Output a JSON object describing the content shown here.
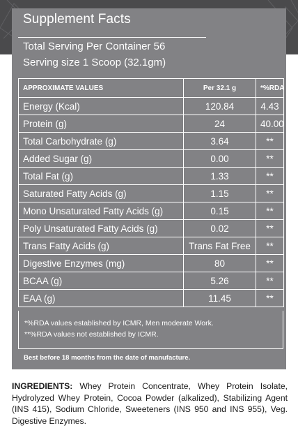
{
  "panel": {
    "title": "Supplement Facts",
    "serving_per_container": "Total Serving Per Container 56",
    "serving_size": "Serving size 1 Scoop (32.1gm)"
  },
  "table": {
    "headers": {
      "nutrient": "APPROXIMATE VALUES",
      "amount": "Per 32.1 g",
      "rda": "*%RDA"
    },
    "rows": [
      {
        "nutrient": "Energy (Kcal)",
        "amount": "120.84",
        "rda": "4.43"
      },
      {
        "nutrient": "Protein (g)",
        "amount": "24",
        "rda": "40.00"
      },
      {
        "nutrient": "Total Carbohydrate (g)",
        "amount": "3.64",
        "rda": "**"
      },
      {
        "nutrient": "Added Sugar (g)",
        "amount": "0.00",
        "rda": "**"
      },
      {
        "nutrient": "Total Fat (g)",
        "amount": "1.33",
        "rda": "**"
      },
      {
        "nutrient": "Saturated Fatty Acids (g)",
        "amount": "1.15",
        "rda": "**"
      },
      {
        "nutrient": "Mono Unsaturated Fatty Acids (g)",
        "amount": "0.15",
        "rda": "**"
      },
      {
        "nutrient": "Poly Unsaturated Fatty Acids (g)",
        "amount": "0.02",
        "rda": "**"
      },
      {
        "nutrient": "Trans Fatty Acids (g)",
        "amount": "Trans Fat Free",
        "rda": "**"
      },
      {
        "nutrient": "Digestive Enzymes (mg)",
        "amount": "80",
        "rda": "**"
      },
      {
        "nutrient": "BCAA (g)",
        "amount": "5.26",
        "rda": "**"
      },
      {
        "nutrient": "EAA (g)",
        "amount": "11.45",
        "rda": "**"
      }
    ]
  },
  "notes": {
    "rda_note": "*%RDA values established by ICMR, Men moderate Work.",
    "na_note": "**%RDA values not established by ICMR."
  },
  "best_before": "Best before 18 months from the date of manufacture.",
  "ingredients": {
    "label": "INGREDIENTS:",
    "text": " Whey Protein Concentrate, Whey Protein Isolate, Hydrolyzed Whey Protein, Cocoa Powder (alkalized), Stabilizing Agent (INS 415), Sodium Chloride, Sweeteners (INS 950 and INS 955), Veg. Digestive Enzymes."
  },
  "colors": {
    "panel_bg": "#828285",
    "header_bg": "#4a4a4c",
    "text_light": "#ffffff",
    "text_dark": "#1a1a1a"
  }
}
